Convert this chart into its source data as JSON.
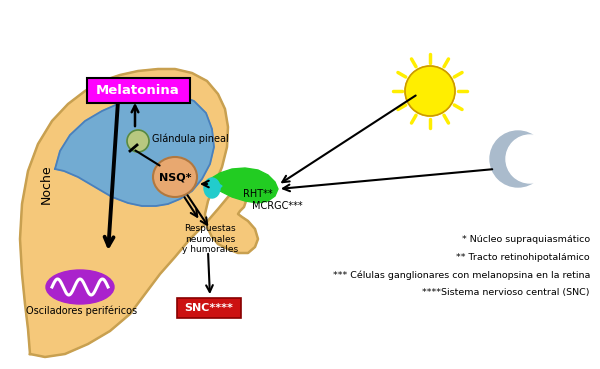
{
  "bg_color": "#FFFFFF",
  "head_color": "#F5C87A",
  "head_border": "#C8A050",
  "brain_color": "#6BAAD8",
  "brain_border": "#4A80BB",
  "melatonina_bg": "#FF00FF",
  "melatonina_text": "#FFFFFF",
  "nsq_color": "#E8A870",
  "nsq_border": "#B07840",
  "pineal_color": "#B8C880",
  "pineal_border": "#708858",
  "eye_green": "#22CC22",
  "eye_cyan": "#22CCCC",
  "oscillator_color": "#AA22CC",
  "snc_bg": "#CC1111",
  "snc_text": "#FFFFFF",
  "sun_color": "#FFEE00",
  "moon_color": "#AABBCC",
  "arrow_color": "#000000",
  "footnotes": [
    "* Núcleo supraquiasmático",
    "** Tracto retinohipotalámico",
    "*** Células ganglionares con melanopsina en la retina",
    "****Sistema nervioso central (SNC)"
  ]
}
